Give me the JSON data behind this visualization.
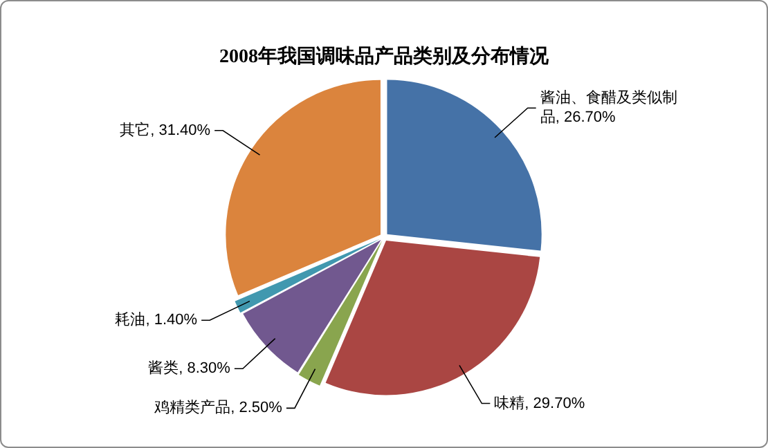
{
  "chart_data": {
    "type": "pie",
    "title": "2008年我国调味品产品类别及分布情况",
    "categories": [
      "酱油、食醋及类似制品",
      "味精",
      "鸡精类产品",
      "酱类",
      "耗油",
      "其它"
    ],
    "values": [
      26.7,
      29.7,
      2.5,
      8.3,
      1.4,
      31.4
    ],
    "value_labels": [
      "26.70%",
      "29.70%",
      "2.50%",
      "8.30%",
      "1.40%",
      "31.40%"
    ],
    "colors": [
      "#4572a7",
      "#aa4643",
      "#89a54e",
      "#71588f",
      "#4198af",
      "#db843d"
    ],
    "legend": false
  }
}
